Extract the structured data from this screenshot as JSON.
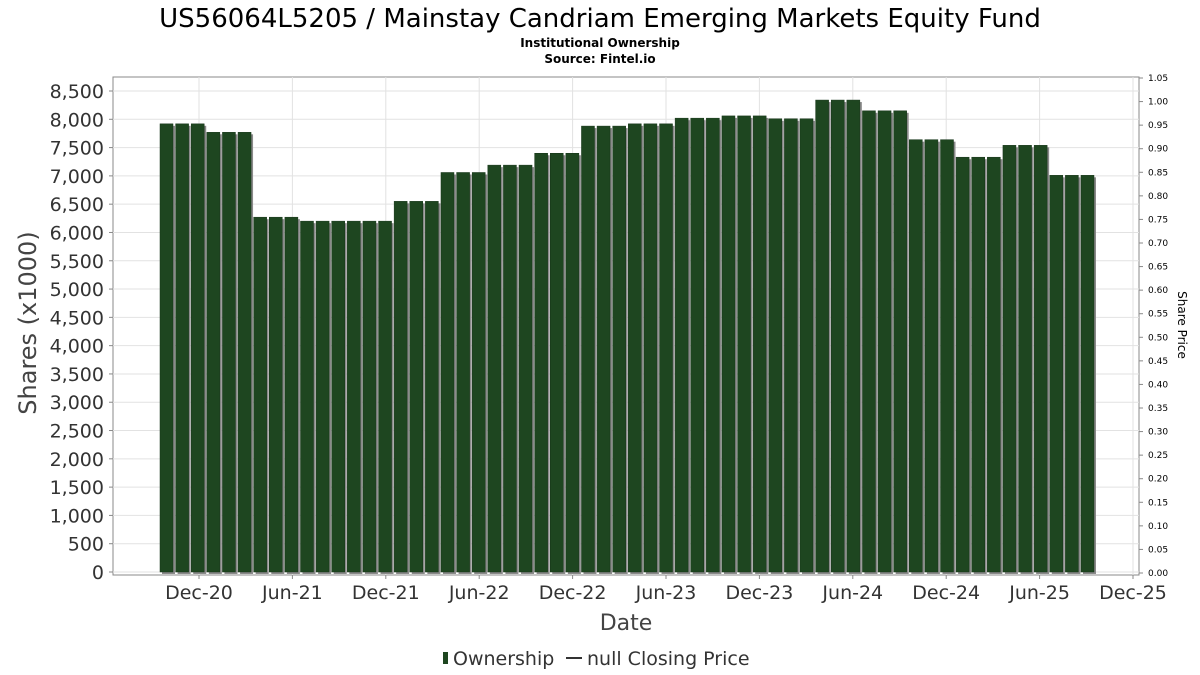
{
  "chart_data": {
    "type": "bar",
    "title": "US56064L5205 / Mainstay Candriam Emerging Markets Equity Fund",
    "subtitle_lines": [
      "Institutional Ownership",
      "Source: Fintel.io"
    ],
    "xlabel": "Date",
    "ylabel": "Shares (x1000)",
    "y2label": "Share Price",
    "ylim": [
      0,
      8500
    ],
    "y_ticks": [
      "0",
      "500",
      "1,000",
      "1,500",
      "2,000",
      "2,500",
      "3,000",
      "3,500",
      "4,000",
      "4,500",
      "5,000",
      "5,500",
      "6,000",
      "6,500",
      "7,000",
      "7,500",
      "8,000",
      "8,500"
    ],
    "y2lim": [
      0,
      1.05
    ],
    "y2_ticks": [
      "0.00",
      "0.05",
      "0.10",
      "0.15",
      "0.20",
      "0.25",
      "0.30",
      "0.35",
      "0.40",
      "0.45",
      "0.50",
      "0.55",
      "0.60",
      "0.65",
      "0.70",
      "0.75",
      "0.80",
      "0.85",
      "0.90",
      "0.95",
      "1.00",
      "1.05"
    ],
    "x_ticks": [
      "Dec-20",
      "Jun-21",
      "Dec-21",
      "Jun-22",
      "Dec-22",
      "Jun-23",
      "Dec-23",
      "Jun-24",
      "Dec-24",
      "Jun-25",
      "Dec-25"
    ],
    "grid": true,
    "legend_position": "bottom",
    "legend": [
      {
        "label": "Ownership",
        "kind": "bar"
      },
      {
        "label": "null Closing Price",
        "kind": "line"
      }
    ],
    "bar_color": "#1e4620",
    "series": [
      {
        "name": "Ownership",
        "values": [
          7920,
          7920,
          7920,
          7770,
          7770,
          7770,
          6270,
          6270,
          6270,
          6200,
          6200,
          6200,
          6200,
          6200,
          6200,
          6550,
          6550,
          6550,
          7060,
          7060,
          7060,
          7190,
          7190,
          7190,
          7400,
          7400,
          7400,
          7880,
          7880,
          7880,
          7920,
          7920,
          7920,
          8020,
          8020,
          8020,
          8060,
          8060,
          8060,
          8010,
          8010,
          8010,
          8340,
          8340,
          8340,
          8150,
          8150,
          8150,
          7640,
          7640,
          7640,
          7330,
          7330,
          7330,
          7540,
          7540,
          7540,
          7010,
          7010,
          7010
        ]
      }
    ]
  }
}
